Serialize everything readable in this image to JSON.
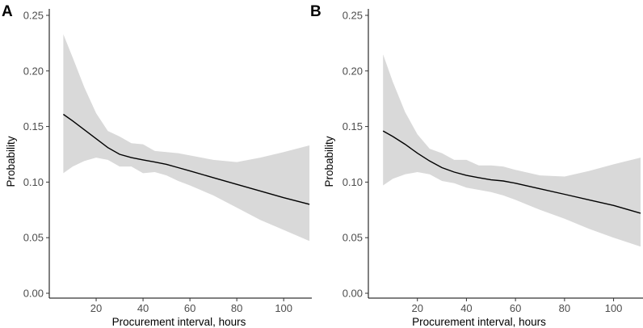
{
  "chart_data": [
    {
      "panel_label": "A",
      "type": "line",
      "xlabel": "Procurement interval, hours",
      "ylabel": "Probability",
      "xlim": [
        0,
        112
      ],
      "ylim": [
        0,
        0.25
      ],
      "xticks": [
        20,
        40,
        60,
        80,
        100
      ],
      "yticks": [
        "0.00",
        "0.05",
        "0.10",
        "0.15",
        "0.20",
        "0.25"
      ],
      "grid": false,
      "series": [
        {
          "x": [
            6,
            10,
            15,
            20,
            25,
            30,
            35,
            40,
            45,
            50,
            55,
            60,
            70,
            80,
            90,
            100,
            111
          ],
          "y": [
            0.161,
            0.155,
            0.147,
            0.139,
            0.131,
            0.125,
            0.122,
            0.12,
            0.118,
            0.116,
            0.113,
            0.11,
            0.104,
            0.098,
            0.092,
            0.086,
            0.08
          ],
          "lower": [
            0.108,
            0.114,
            0.119,
            0.122,
            0.12,
            0.114,
            0.114,
            0.108,
            0.109,
            0.106,
            0.101,
            0.097,
            0.088,
            0.077,
            0.066,
            0.057,
            0.047
          ],
          "upper": [
            0.233,
            0.212,
            0.185,
            0.162,
            0.146,
            0.141,
            0.135,
            0.134,
            0.128,
            0.127,
            0.126,
            0.124,
            0.12,
            0.118,
            0.122,
            0.127,
            0.133
          ]
        }
      ]
    },
    {
      "panel_label": "B",
      "type": "line",
      "xlabel": "Procurement interval, hours",
      "ylabel": "Probability",
      "xlim": [
        0,
        112
      ],
      "ylim": [
        0,
        0.25
      ],
      "xticks": [
        20,
        40,
        60,
        80,
        100
      ],
      "yticks": [
        "0.00",
        "0.05",
        "0.10",
        "0.15",
        "0.20",
        "0.25"
      ],
      "grid": false,
      "series": [
        {
          "x": [
            6,
            10,
            15,
            20,
            25,
            30,
            35,
            40,
            45,
            50,
            55,
            60,
            70,
            80,
            90,
            100,
            111
          ],
          "y": [
            0.146,
            0.141,
            0.134,
            0.126,
            0.119,
            0.113,
            0.109,
            0.106,
            0.104,
            0.102,
            0.101,
            0.099,
            0.094,
            0.089,
            0.084,
            0.079,
            0.072
          ],
          "lower": [
            0.097,
            0.103,
            0.107,
            0.109,
            0.107,
            0.101,
            0.099,
            0.095,
            0.093,
            0.091,
            0.088,
            0.084,
            0.075,
            0.067,
            0.058,
            0.05,
            0.042
          ],
          "upper": [
            0.215,
            0.19,
            0.163,
            0.143,
            0.13,
            0.126,
            0.12,
            0.12,
            0.115,
            0.115,
            0.114,
            0.111,
            0.106,
            0.105,
            0.11,
            0.116,
            0.122
          ]
        }
      ]
    }
  ]
}
